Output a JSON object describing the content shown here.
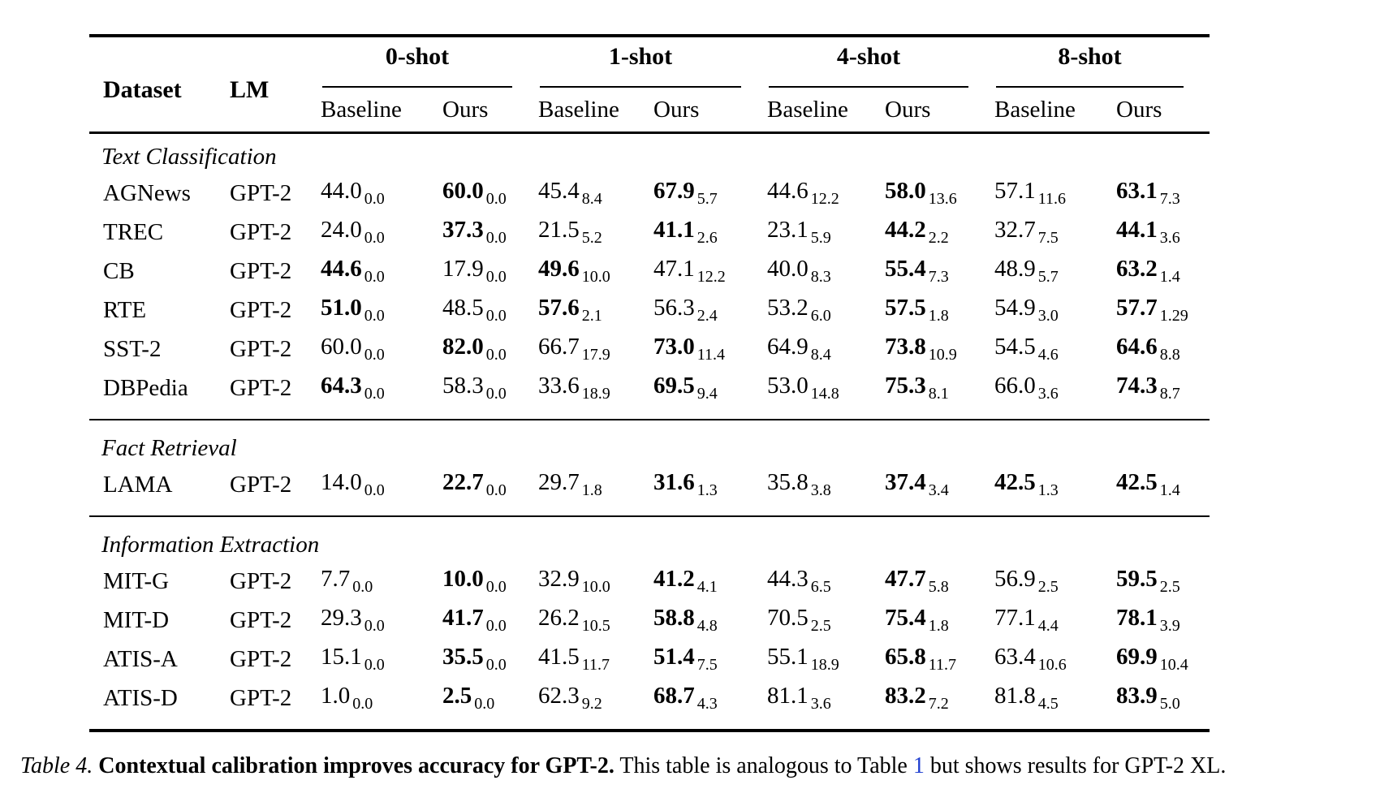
{
  "page": {
    "background": "#ffffff",
    "text_color": "#000000"
  },
  "table": {
    "col_headers": {
      "dataset": "Dataset",
      "lm": "LM"
    },
    "groups": [
      {
        "label": "0-shot"
      },
      {
        "label": "1-shot"
      },
      {
        "label": "4-shot"
      },
      {
        "label": "8-shot"
      }
    ],
    "subheaders": [
      "Baseline",
      "Ours"
    ],
    "sections": [
      {
        "label": "Text Classification",
        "rows": [
          {
            "dataset": "AGNews",
            "lm": "GPT-2",
            "cells": [
              {
                "v": "44.0",
                "s": "0.0",
                "b": false
              },
              {
                "v": "60.0",
                "s": "0.0",
                "b": true
              },
              {
                "v": "45.4",
                "s": "8.4",
                "b": false
              },
              {
                "v": "67.9",
                "s": "5.7",
                "b": true
              },
              {
                "v": "44.6",
                "s": "12.2",
                "b": false
              },
              {
                "v": "58.0",
                "s": "13.6",
                "b": true
              },
              {
                "v": "57.1",
                "s": "11.6",
                "b": false
              },
              {
                "v": "63.1",
                "s": "7.3",
                "b": true
              }
            ]
          },
          {
            "dataset": "TREC",
            "lm": "GPT-2",
            "cells": [
              {
                "v": "24.0",
                "s": "0.0",
                "b": false
              },
              {
                "v": "37.3",
                "s": "0.0",
                "b": true
              },
              {
                "v": "21.5",
                "s": "5.2",
                "b": false
              },
              {
                "v": "41.1",
                "s": "2.6",
                "b": true
              },
              {
                "v": "23.1",
                "s": "5.9",
                "b": false
              },
              {
                "v": "44.2",
                "s": "2.2",
                "b": true
              },
              {
                "v": "32.7",
                "s": "7.5",
                "b": false
              },
              {
                "v": "44.1",
                "s": "3.6",
                "b": true
              }
            ]
          },
          {
            "dataset": "CB",
            "lm": "GPT-2",
            "cells": [
              {
                "v": "44.6",
                "s": "0.0",
                "b": true
              },
              {
                "v": "17.9",
                "s": "0.0",
                "b": false
              },
              {
                "v": "49.6",
                "s": "10.0",
                "b": true
              },
              {
                "v": "47.1",
                "s": "12.2",
                "b": false
              },
              {
                "v": "40.0",
                "s": "8.3",
                "b": false
              },
              {
                "v": "55.4",
                "s": "7.3",
                "b": true
              },
              {
                "v": "48.9",
                "s": "5.7",
                "b": false
              },
              {
                "v": "63.2",
                "s": "1.4",
                "b": true
              }
            ]
          },
          {
            "dataset": "RTE",
            "lm": "GPT-2",
            "cells": [
              {
                "v": "51.0",
                "s": "0.0",
                "b": true
              },
              {
                "v": "48.5",
                "s": "0.0",
                "b": false
              },
              {
                "v": "57.6",
                "s": "2.1",
                "b": true
              },
              {
                "v": "56.3",
                "s": "2.4",
                "b": false
              },
              {
                "v": "53.2",
                "s": "6.0",
                "b": false
              },
              {
                "v": "57.5",
                "s": "1.8",
                "b": true
              },
              {
                "v": "54.9",
                "s": "3.0",
                "b": false
              },
              {
                "v": "57.7",
                "s": "1.29",
                "b": true
              }
            ]
          },
          {
            "dataset": "SST-2",
            "lm": "GPT-2",
            "cells": [
              {
                "v": "60.0",
                "s": "0.0",
                "b": false
              },
              {
                "v": "82.0",
                "s": "0.0",
                "b": true
              },
              {
                "v": "66.7",
                "s": "17.9",
                "b": false
              },
              {
                "v": "73.0",
                "s": "11.4",
                "b": true
              },
              {
                "v": "64.9",
                "s": "8.4",
                "b": false
              },
              {
                "v": "73.8",
                "s": "10.9",
                "b": true
              },
              {
                "v": "54.5",
                "s": "4.6",
                "b": false
              },
              {
                "v": "64.6",
                "s": "8.8",
                "b": true
              }
            ]
          },
          {
            "dataset": "DBPedia",
            "lm": "GPT-2",
            "cells": [
              {
                "v": "64.3",
                "s": "0.0",
                "b": true
              },
              {
                "v": "58.3",
                "s": "0.0",
                "b": false
              },
              {
                "v": "33.6",
                "s": "18.9",
                "b": false
              },
              {
                "v": "69.5",
                "s": "9.4",
                "b": true
              },
              {
                "v": "53.0",
                "s": "14.8",
                "b": false
              },
              {
                "v": "75.3",
                "s": "8.1",
                "b": true
              },
              {
                "v": "66.0",
                "s": "3.6",
                "b": false
              },
              {
                "v": "74.3",
                "s": "8.7",
                "b": true
              }
            ]
          }
        ]
      },
      {
        "label": "Fact Retrieval",
        "rows": [
          {
            "dataset": "LAMA",
            "lm": "GPT-2",
            "cells": [
              {
                "v": "14.0",
                "s": "0.0",
                "b": false
              },
              {
                "v": "22.7",
                "s": "0.0",
                "b": true
              },
              {
                "v": "29.7",
                "s": "1.8",
                "b": false
              },
              {
                "v": "31.6",
                "s": "1.3",
                "b": true
              },
              {
                "v": "35.8",
                "s": "3.8",
                "b": false
              },
              {
                "v": "37.4",
                "s": "3.4",
                "b": true
              },
              {
                "v": "42.5",
                "s": "1.3",
                "b": true
              },
              {
                "v": "42.5",
                "s": "1.4",
                "b": true
              }
            ]
          }
        ]
      },
      {
        "label": "Information Extraction",
        "rows": [
          {
            "dataset": "MIT-G",
            "lm": "GPT-2",
            "cells": [
              {
                "v": "7.7",
                "s": "0.0",
                "b": false
              },
              {
                "v": "10.0",
                "s": "0.0",
                "b": true
              },
              {
                "v": "32.9",
                "s": "10.0",
                "b": false
              },
              {
                "v": "41.2",
                "s": "4.1",
                "b": true
              },
              {
                "v": "44.3",
                "s": "6.5",
                "b": false
              },
              {
                "v": "47.7",
                "s": "5.8",
                "b": true
              },
              {
                "v": "56.9",
                "s": "2.5",
                "b": false
              },
              {
                "v": "59.5",
                "s": "2.5",
                "b": true
              }
            ]
          },
          {
            "dataset": "MIT-D",
            "lm": "GPT-2",
            "cells": [
              {
                "v": "29.3",
                "s": "0.0",
                "b": false
              },
              {
                "v": "41.7",
                "s": "0.0",
                "b": true
              },
              {
                "v": "26.2",
                "s": "10.5",
                "b": false
              },
              {
                "v": "58.8",
                "s": "4.8",
                "b": true
              },
              {
                "v": "70.5",
                "s": "2.5",
                "b": false
              },
              {
                "v": "75.4",
                "s": "1.8",
                "b": true
              },
              {
                "v": "77.1",
                "s": "4.4",
                "b": false
              },
              {
                "v": "78.1",
                "s": "3.9",
                "b": true
              }
            ]
          },
          {
            "dataset": "ATIS-A",
            "lm": "GPT-2",
            "cells": [
              {
                "v": "15.1",
                "s": "0.0",
                "b": false
              },
              {
                "v": "35.5",
                "s": "0.0",
                "b": true
              },
              {
                "v": "41.5",
                "s": "11.7",
                "b": false
              },
              {
                "v": "51.4",
                "s": "7.5",
                "b": true
              },
              {
                "v": "55.1",
                "s": "18.9",
                "b": false
              },
              {
                "v": "65.8",
                "s": "11.7",
                "b": true
              },
              {
                "v": "63.4",
                "s": "10.6",
                "b": false
              },
              {
                "v": "69.9",
                "s": "10.4",
                "b": true
              }
            ]
          },
          {
            "dataset": "ATIS-D",
            "lm": "GPT-2",
            "cells": [
              {
                "v": "1.0",
                "s": "0.0",
                "b": false
              },
              {
                "v": "2.5",
                "s": "0.0",
                "b": true
              },
              {
                "v": "62.3",
                "s": "9.2",
                "b": false
              },
              {
                "v": "68.7",
                "s": "4.3",
                "b": true
              },
              {
                "v": "81.1",
                "s": "3.6",
                "b": false
              },
              {
                "v": "83.2",
                "s": "7.2",
                "b": true
              },
              {
                "v": "81.8",
                "s": "4.5",
                "b": false
              },
              {
                "v": "83.9",
                "s": "5.0",
                "b": true
              }
            ]
          }
        ]
      }
    ]
  },
  "caption": {
    "tag": "Table 4.",
    "highlight": "Contextual calibration improves accuracy for GPT-2.",
    "body_before_link": "This table is analogous to Table",
    "link_text": "1",
    "body_after_link": "but shows results for GPT-2 XL.",
    "link_color": "#2040d0"
  }
}
